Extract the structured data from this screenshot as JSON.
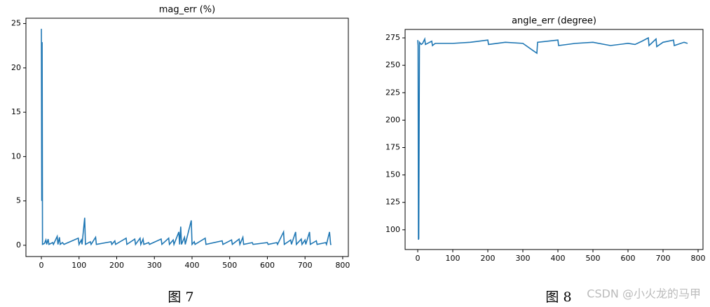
{
  "chart_data": [
    {
      "type": "line",
      "title": "mag_err (%)",
      "color": "#1f77b4",
      "x": [
        0,
        1,
        2,
        3,
        8,
        12,
        14,
        18,
        20,
        30,
        32,
        42,
        44,
        48,
        50,
        56,
        60,
        98,
        100,
        106,
        108,
        115,
        117,
        130,
        132,
        144,
        146,
        185,
        187,
        195,
        197,
        225,
        227,
        248,
        250,
        262,
        264,
        270,
        272,
        285,
        287,
        318,
        320,
        338,
        340,
        350,
        352,
        365,
        367,
        370,
        372,
        380,
        382,
        398,
        400,
        406,
        408,
        435,
        437,
        480,
        482,
        505,
        507,
        525,
        527,
        535,
        537,
        560,
        562,
        600,
        602,
        625,
        627,
        643,
        645,
        662,
        664,
        675,
        677,
        690,
        692,
        700,
        702,
        712,
        714,
        730,
        732,
        755,
        757,
        765,
        768,
        770
      ],
      "values": [
        24.4,
        5,
        22.9,
        0.1,
        0.2,
        0.6,
        0.1,
        0.7,
        0.1,
        0.3,
        0.1,
        1.0,
        0.1,
        0.9,
        0.1,
        0.3,
        0.1,
        0.8,
        0.1,
        0.6,
        0.1,
        3.1,
        0.1,
        0.4,
        0.1,
        0.9,
        0.1,
        0.4,
        0.1,
        0.5,
        0.1,
        0.8,
        0.1,
        0.7,
        0.1,
        0.8,
        0.1,
        0.7,
        0.1,
        0.3,
        0.1,
        0.7,
        0.1,
        0.8,
        0.1,
        0.6,
        0.1,
        1.5,
        0.1,
        2.1,
        0.1,
        0.9,
        0.1,
        2.8,
        0.1,
        0.4,
        0.1,
        0.8,
        0.1,
        0.5,
        0.1,
        0.6,
        0.1,
        0.7,
        0.1,
        0.9,
        0.1,
        0.3,
        0.1,
        0.3,
        0.1,
        0.3,
        0.1,
        1.5,
        0.1,
        0.6,
        0.1,
        1.5,
        0.1,
        0.7,
        0.1,
        0.6,
        0.1,
        1.5,
        0.1,
        0.5,
        0.1,
        0.3,
        0.1,
        1.5,
        0.1,
        0.1
      ],
      "xlim": [
        -41,
        815
      ],
      "ylim": [
        -1.27,
        25.6
      ],
      "xticks": [
        0,
        100,
        200,
        300,
        400,
        500,
        600,
        700,
        800
      ],
      "yticks": [
        0,
        5,
        10,
        15,
        20,
        25
      ]
    },
    {
      "type": "line",
      "title": "angle_err (degree)",
      "color": "#1f77b4",
      "x": [
        0,
        1,
        2,
        3,
        5,
        10,
        14,
        20,
        22,
        40,
        42,
        50,
        100,
        150,
        200,
        202,
        250,
        300,
        340,
        342,
        400,
        402,
        450,
        500,
        550,
        600,
        620,
        640,
        658,
        660,
        680,
        682,
        700,
        730,
        732,
        760,
        770
      ],
      "values": [
        273,
        268,
        91,
        92,
        271,
        269,
        270,
        274,
        269,
        272,
        268,
        270,
        270,
        271,
        273,
        269,
        271,
        270,
        261,
        271,
        273,
        268,
        270,
        271,
        268,
        270,
        269,
        272,
        275,
        268,
        274,
        267,
        271,
        273,
        268,
        271,
        270
      ],
      "xlim": [
        -36,
        814
      ],
      "ylim": [
        82,
        282.7
      ],
      "xticks": [
        0,
        100,
        200,
        300,
        400,
        500,
        600,
        700,
        800
      ],
      "yticks": [
        100,
        125,
        150,
        175,
        200,
        225,
        250,
        275
      ]
    }
  ],
  "captions": [
    "图 7",
    "图 8"
  ],
  "watermark": "CSDN @小火龙的马甲"
}
